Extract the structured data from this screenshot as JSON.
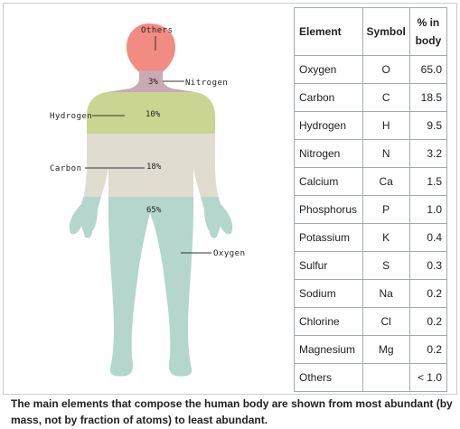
{
  "figure": {
    "labels": {
      "others": "Others",
      "nitrogen": "Nitrogen",
      "hydrogen": "Hydrogen",
      "carbon": "Carbon",
      "oxygen": "Oxygen"
    },
    "percents": {
      "nitrogen": "3%",
      "hydrogen": "10%",
      "carbon": "18%",
      "oxygen": "65%"
    },
    "colors": {
      "others": "#f28b82",
      "nitrogen": "#c8a9b4",
      "hydrogen": "#c9d590",
      "carbon": "#e0dcd0",
      "oxygen": "#b4d6cc"
    }
  },
  "table": {
    "headers": {
      "element": "Element",
      "symbol": "Symbol",
      "percent_line1": "% in",
      "percent_line2": "body"
    },
    "rows": [
      {
        "element": "Oxygen",
        "symbol": "O",
        "percent": "65.0"
      },
      {
        "element": "Carbon",
        "symbol": "C",
        "percent": "18.5"
      },
      {
        "element": "Hydrogen",
        "symbol": "H",
        "percent": "9.5"
      },
      {
        "element": "Nitrogen",
        "symbol": "N",
        "percent": "3.2"
      },
      {
        "element": "Calcium",
        "symbol": "Ca",
        "percent": "1.5"
      },
      {
        "element": "Phosphorus",
        "symbol": "P",
        "percent": "1.0"
      },
      {
        "element": "Potassium",
        "symbol": "K",
        "percent": "0.4"
      },
      {
        "element": "Sulfur",
        "symbol": "S",
        "percent": "0.3"
      },
      {
        "element": "Sodium",
        "symbol": "Na",
        "percent": "0.2"
      },
      {
        "element": "Chlorine",
        "symbol": "Cl",
        "percent": "0.2"
      },
      {
        "element": "Magnesium",
        "symbol": "Mg",
        "percent": "0.2"
      },
      {
        "element": "Others",
        "symbol": "",
        "percent": "< 1.0"
      }
    ]
  },
  "caption": "The main elements that compose the human body are shown from most abundant (by mass, not by fraction of atoms) to least abundant."
}
